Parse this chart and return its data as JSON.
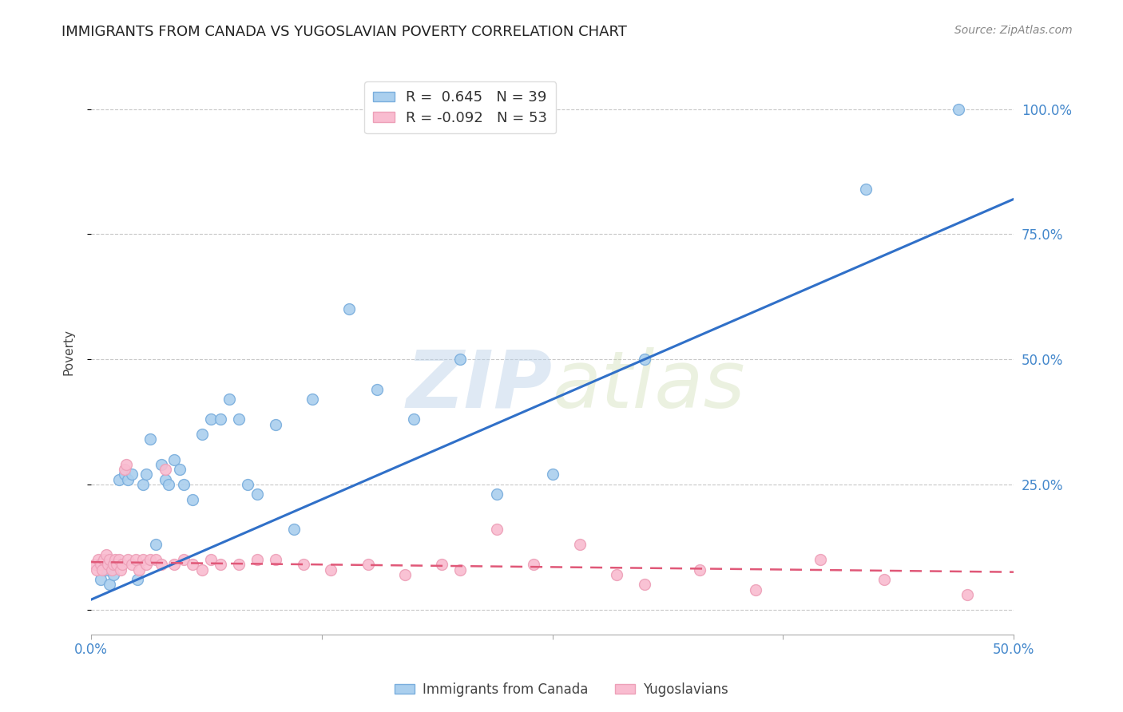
{
  "title": "IMMIGRANTS FROM CANADA VS YUGOSLAVIAN POVERTY CORRELATION CHART",
  "source": "Source: ZipAtlas.com",
  "ylabel": "Poverty",
  "yticks": [
    0.0,
    0.25,
    0.5,
    0.75,
    1.0
  ],
  "ytick_labels": [
    "",
    "25.0%",
    "50.0%",
    "75.0%",
    "100.0%"
  ],
  "xticks": [
    0.0,
    0.125,
    0.25,
    0.375,
    0.5
  ],
  "xtick_labels": [
    "0.0%",
    "",
    "",
    "",
    "50.0%"
  ],
  "xlim": [
    0.0,
    0.5
  ],
  "ylim": [
    -0.05,
    1.08
  ],
  "legend_entry1": "R =  0.645   N = 39",
  "legend_entry2": "R = -0.092   N = 53",
  "legend_label1": "Immigrants from Canada",
  "legend_label2": "Yugoslavians",
  "blue_scatter_x": [
    0.005,
    0.008,
    0.01,
    0.012,
    0.015,
    0.018,
    0.02,
    0.022,
    0.025,
    0.028,
    0.03,
    0.032,
    0.035,
    0.038,
    0.04,
    0.042,
    0.045,
    0.048,
    0.05,
    0.055,
    0.06,
    0.065,
    0.07,
    0.075,
    0.08,
    0.085,
    0.09,
    0.1,
    0.11,
    0.12,
    0.14,
    0.155,
    0.175,
    0.2,
    0.22,
    0.25,
    0.3,
    0.42,
    0.47
  ],
  "blue_scatter_y": [
    0.06,
    0.08,
    0.05,
    0.07,
    0.26,
    0.27,
    0.26,
    0.27,
    0.06,
    0.25,
    0.27,
    0.34,
    0.13,
    0.29,
    0.26,
    0.25,
    0.3,
    0.28,
    0.25,
    0.22,
    0.35,
    0.38,
    0.38,
    0.42,
    0.38,
    0.25,
    0.23,
    0.37,
    0.16,
    0.42,
    0.6,
    0.44,
    0.38,
    0.5,
    0.23,
    0.27,
    0.5,
    0.84,
    1.0
  ],
  "pink_scatter_x": [
    0.002,
    0.003,
    0.004,
    0.005,
    0.006,
    0.007,
    0.008,
    0.009,
    0.01,
    0.011,
    0.012,
    0.013,
    0.014,
    0.015,
    0.016,
    0.017,
    0.018,
    0.019,
    0.02,
    0.022,
    0.024,
    0.026,
    0.028,
    0.03,
    0.032,
    0.035,
    0.038,
    0.04,
    0.045,
    0.05,
    0.055,
    0.06,
    0.065,
    0.07,
    0.08,
    0.09,
    0.1,
    0.115,
    0.13,
    0.15,
    0.17,
    0.19,
    0.2,
    0.22,
    0.24,
    0.265,
    0.285,
    0.3,
    0.33,
    0.36,
    0.395,
    0.43,
    0.475
  ],
  "pink_scatter_y": [
    0.09,
    0.08,
    0.1,
    0.09,
    0.08,
    0.1,
    0.11,
    0.09,
    0.1,
    0.08,
    0.09,
    0.1,
    0.09,
    0.1,
    0.08,
    0.09,
    0.28,
    0.29,
    0.1,
    0.09,
    0.1,
    0.08,
    0.1,
    0.09,
    0.1,
    0.1,
    0.09,
    0.28,
    0.09,
    0.1,
    0.09,
    0.08,
    0.1,
    0.09,
    0.09,
    0.1,
    0.1,
    0.09,
    0.08,
    0.09,
    0.07,
    0.09,
    0.08,
    0.16,
    0.09,
    0.13,
    0.07,
    0.05,
    0.08,
    0.04,
    0.1,
    0.06,
    0.03
  ],
  "blue_line_x": [
    0.0,
    0.5
  ],
  "blue_line_y": [
    0.02,
    0.82
  ],
  "pink_line_x": [
    0.0,
    0.5
  ],
  "pink_line_y": [
    0.095,
    0.075
  ],
  "scatter_size": 100,
  "blue_color": "#aacfee",
  "blue_edge": "#7aaedd",
  "pink_color": "#f9bcd0",
  "pink_edge": "#eda0b8",
  "blue_line_color": "#3070c8",
  "pink_line_color": "#e05878",
  "watermark_zip": "ZIP",
  "watermark_atlas": "atlas",
  "background_color": "#ffffff",
  "grid_color": "#c8c8c8",
  "title_color": "#222222",
  "tick_color": "#4488cc",
  "source_color": "#888888"
}
